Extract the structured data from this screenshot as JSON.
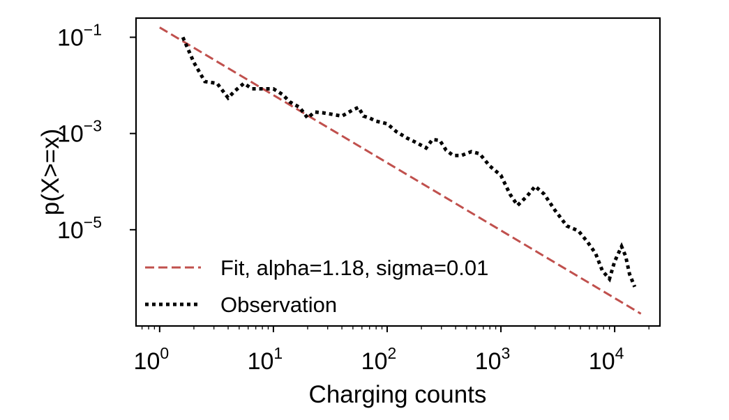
{
  "chart_data": {
    "type": "line",
    "xscale": "log",
    "yscale": "log",
    "xlabel": "Charging counts",
    "ylabel": "p(X>=x)",
    "xlim": [
      0.62,
      25000
    ],
    "ylim": [
      1e-07,
      0.25
    ],
    "x_ticks": [
      {
        "value": 1,
        "base": "10",
        "exp": "0"
      },
      {
        "value": 10,
        "base": "10",
        "exp": "1"
      },
      {
        "value": 100,
        "base": "10",
        "exp": "2"
      },
      {
        "value": 1000,
        "base": "10",
        "exp": "3"
      },
      {
        "value": 10000,
        "base": "10",
        "exp": "4"
      }
    ],
    "y_ticks": [
      {
        "value": 0.1,
        "base": "10",
        "exp": "−1"
      },
      {
        "value": 0.001,
        "base": "10",
        "exp": "−3"
      },
      {
        "value": 1e-05,
        "base": "10",
        "exp": "−5"
      }
    ],
    "legend_position": "lower-left",
    "series": [
      {
        "name": "Fit, alpha=1.18, sigma=0.01",
        "style": "dashed",
        "color": "#c0504d",
        "x": [
          1,
          17000
        ],
        "y": [
          0.16,
          1.8e-07
        ]
      },
      {
        "name": "Observation",
        "style": "dotted",
        "color": "#000000",
        "x": [
          1.6,
          2.0,
          2.5,
          3.2,
          4.0,
          4.6,
          5.5,
          6.5,
          8.0,
          10,
          12,
          14,
          17,
          20,
          23,
          27,
          33,
          40,
          50,
          56,
          62,
          70,
          80,
          100,
          120,
          150,
          180,
          220,
          250,
          290,
          330,
          380,
          450,
          550,
          650,
          800,
          1000,
          1200,
          1400,
          1700,
          2000,
          2400,
          3000,
          3800,
          4800,
          5800,
          6800,
          7800,
          9000,
          10000,
          11500,
          12500,
          13500,
          15000
        ],
        "y": [
          0.1,
          0.03,
          0.012,
          0.011,
          0.0055,
          0.0077,
          0.011,
          0.0085,
          0.0085,
          0.0085,
          0.0065,
          0.0045,
          0.0035,
          0.0021,
          0.0028,
          0.0027,
          0.0025,
          0.0023,
          0.0031,
          0.0035,
          0.0023,
          0.0021,
          0.0018,
          0.0016,
          0.0011,
          0.0008,
          0.00065,
          0.0005,
          0.00075,
          0.00072,
          0.00045,
          0.00035,
          0.00035,
          0.00042,
          0.00038,
          0.00021,
          0.000135,
          5.5e-05,
          3.2e-05,
          5e-05,
          8e-05,
          5.5e-05,
          2.5e-05,
          1.2e-05,
          9.5e-06,
          5.5e-06,
          3.2e-06,
          1.4e-06,
          9.5e-07,
          2.2e-06,
          4.5e-06,
          2.8e-06,
          1.2e-06,
          6.5e-07
        ]
      }
    ]
  }
}
